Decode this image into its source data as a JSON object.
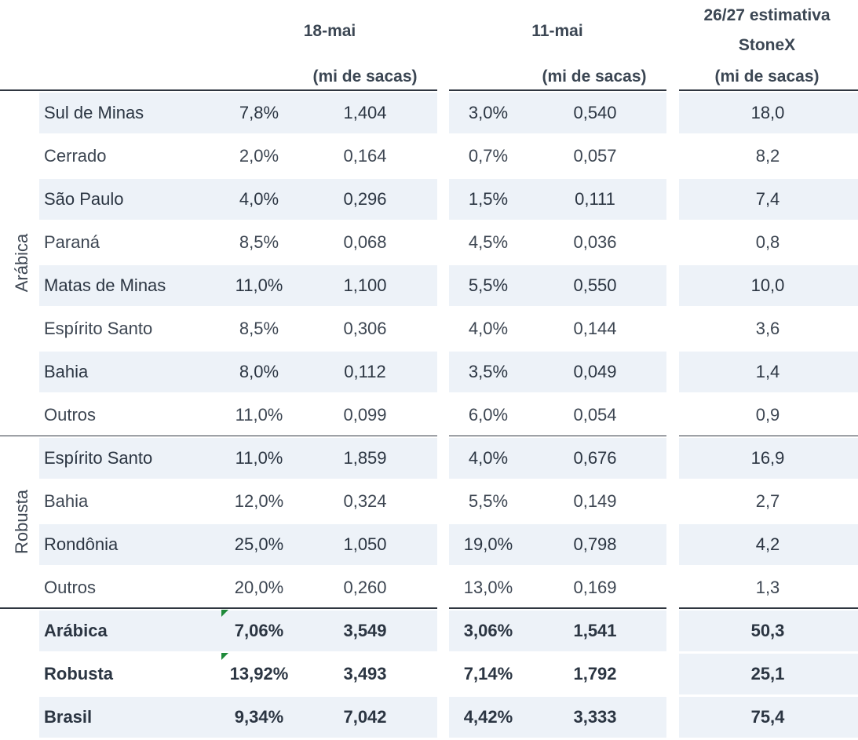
{
  "header": {
    "col_18mai": "18-mai",
    "col_11mai": "11-mai",
    "col_est_line1": "26/27 estimativa",
    "col_est_line2": "StoneX",
    "unit_18": "(mi de sacas)",
    "unit_11": "(mi de sacas)",
    "unit_est": "(mi de sacas)"
  },
  "groups": {
    "arabica": "Arábica",
    "robusta": "Robusta"
  },
  "rows": [
    {
      "region": "Sul de Minas",
      "p18": "7,8%",
      "v18": "1,404",
      "p11": "3,0%",
      "v11": "0,540",
      "est": "18,0"
    },
    {
      "region": "Cerrado",
      "p18": "2,0%",
      "v18": "0,164",
      "p11": "0,7%",
      "v11": "0,057",
      "est": "8,2"
    },
    {
      "region": "São Paulo",
      "p18": "4,0%",
      "v18": "0,296",
      "p11": "1,5%",
      "v11": "0,111",
      "est": "7,4"
    },
    {
      "region": "Paraná",
      "p18": "8,5%",
      "v18": "0,068",
      "p11": "4,5%",
      "v11": "0,036",
      "est": "0,8"
    },
    {
      "region": "Matas de Minas",
      "p18": "11,0%",
      "v18": "1,100",
      "p11": "5,5%",
      "v11": "0,550",
      "est": "10,0"
    },
    {
      "region": "Espírito Santo",
      "p18": "8,5%",
      "v18": "0,306",
      "p11": "4,0%",
      "v11": "0,144",
      "est": "3,6"
    },
    {
      "region": "Bahia",
      "p18": "8,0%",
      "v18": "0,112",
      "p11": "3,5%",
      "v11": "0,049",
      "est": "1,4"
    },
    {
      "region": "Outros",
      "p18": "11,0%",
      "v18": "0,099",
      "p11": "6,0%",
      "v11": "0,054",
      "est": "0,9"
    },
    {
      "region": "Espírito Santo",
      "p18": "11,0%",
      "v18": "1,859",
      "p11": "4,0%",
      "v11": "0,676",
      "est": "16,9"
    },
    {
      "region": "Bahia",
      "p18": "12,0%",
      "v18": "0,324",
      "p11": "5,5%",
      "v11": "0,149",
      "est": "2,7"
    },
    {
      "region": "Rondônia",
      "p18": "25,0%",
      "v18": "1,050",
      "p11": "19,0%",
      "v11": "0,798",
      "est": "4,2"
    },
    {
      "region": "Outros",
      "p18": "20,0%",
      "v18": "0,260",
      "p11": "13,0%",
      "v11": "0,169",
      "est": "1,3"
    }
  ],
  "totals": [
    {
      "region": "Arábica",
      "p18": "7,06%",
      "v18": "3,549",
      "p11": "3,06%",
      "v11": "1,541",
      "est": "50,3"
    },
    {
      "region": "Robusta",
      "p18": "13,92%",
      "v18": "3,493",
      "p11": "7,14%",
      "v11": "1,792",
      "est": "25,1"
    },
    {
      "region": "Brasil",
      "p18": "9,34%",
      "v18": "7,042",
      "p11": "4,42%",
      "v11": "3,333",
      "est": "75,4"
    }
  ],
  "colors": {
    "row_band": "#edf2f8",
    "rule": "#2f3640",
    "flag": "#1f8a3a"
  }
}
